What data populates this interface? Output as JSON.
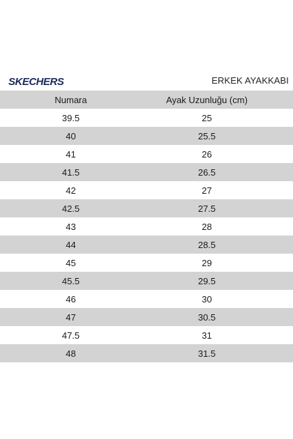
{
  "brand": {
    "logo_text": "SKECHERS"
  },
  "title": "ERKEK AYAKKABI",
  "table": {
    "headers": [
      "Numara",
      "Ayak Uzunluğu (cm)"
    ],
    "rows": [
      [
        "39.5",
        "25"
      ],
      [
        "40",
        "25.5"
      ],
      [
        "41",
        "26"
      ],
      [
        "41.5",
        "26.5"
      ],
      [
        "42",
        "27"
      ],
      [
        "42.5",
        "27.5"
      ],
      [
        "43",
        "28"
      ],
      [
        "44",
        "28.5"
      ],
      [
        "45",
        "29"
      ],
      [
        "45.5",
        "29.5"
      ],
      [
        "46",
        "30"
      ],
      [
        "47",
        "30.5"
      ],
      [
        "47.5",
        "31"
      ],
      [
        "48",
        "31.5"
      ]
    ]
  }
}
